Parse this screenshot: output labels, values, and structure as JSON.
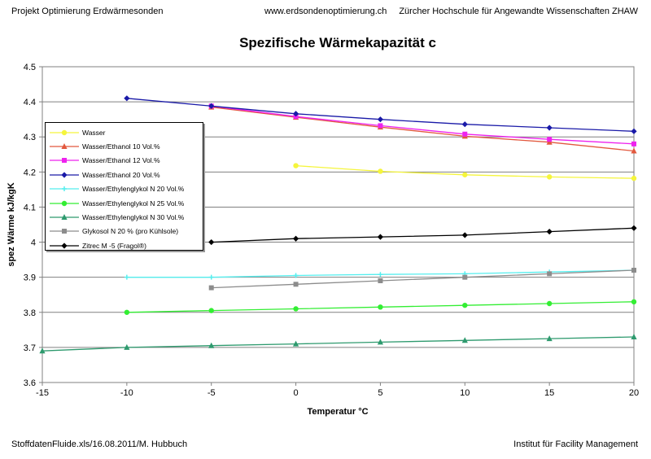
{
  "header": {
    "left": "Projekt Optimierung Erdwärmesonden",
    "center": "www.erdsondenoptimierung.ch",
    "right": "Zürcher Hochschule für Angewandte Wissenschaften ZHAW"
  },
  "footer": {
    "left": "StoffdatenFluide.xls/16.08.2011/M. Hubbuch",
    "right": "Institut für Facility Management"
  },
  "chart_data": {
    "type": "line",
    "title": "Spezifische Wärmekapazität c",
    "xlabel": "Temperatur °C",
    "ylabel": "spez Wärme kJ/kgK",
    "xlim": [
      -15,
      20
    ],
    "ylim": [
      3.6,
      4.5
    ],
    "x_ticks": [
      -15,
      -10,
      -5,
      0,
      5,
      10,
      15,
      20
    ],
    "y_ticks": [
      3.6,
      3.7,
      3.8,
      3.9,
      4,
      4.1,
      4.2,
      4.3,
      4.4,
      4.5
    ],
    "x_tick_labels": [
      "-15",
      "-10",
      "-5",
      "0",
      "5",
      "10",
      "15",
      "20"
    ],
    "y_tick_labels": [
      "3.6",
      "3.7",
      "3.8",
      "3.9",
      "4",
      "4.1",
      "4.2",
      "4.3",
      "4.4",
      "4.5"
    ],
    "grid": "horizontal",
    "legend_position": "left",
    "series": [
      {
        "name": "Wasser",
        "color": "#f5f53c",
        "marker": "circle",
        "x": [
          0,
          5,
          10,
          15,
          20
        ],
        "y": [
          4.218,
          4.202,
          4.192,
          4.186,
          4.182
        ]
      },
      {
        "name": "Wasser/Ethanol 10 Vol.%",
        "color": "#e2583e",
        "marker": "triangle",
        "x": [
          -5,
          0,
          5,
          10,
          15,
          20
        ],
        "y": [
          4.385,
          4.356,
          4.328,
          4.302,
          4.285,
          4.26
        ]
      },
      {
        "name": "Wasser/Ethanol 12 Vol.%",
        "color": "#ee22ee",
        "marker": "square",
        "x": [
          -5,
          0,
          5,
          10,
          15,
          20
        ],
        "y": [
          4.388,
          4.358,
          4.332,
          4.308,
          4.293,
          4.28
        ]
      },
      {
        "name": "Wasser/Ethanol 20 Vol.%",
        "color": "#1a1aa8",
        "marker": "diamond",
        "x": [
          -10,
          -5,
          0,
          5,
          10,
          15,
          20
        ],
        "y": [
          4.41,
          4.388,
          4.366,
          4.35,
          4.336,
          4.326,
          4.316
        ]
      },
      {
        "name": "Wasser/Ethylenglykol N 20 Vol.%",
        "color": "#55eeee",
        "marker": "cross",
        "x": [
          -10,
          -5,
          0,
          5,
          10,
          15,
          20
        ],
        "y": [
          3.9,
          3.9,
          3.905,
          3.908,
          3.91,
          3.915,
          3.92
        ]
      },
      {
        "name": "Wasser/Ethylenglykol N 25 Vol.%",
        "color": "#33ee33",
        "marker": "circle",
        "x": [
          -10,
          -5,
          0,
          5,
          10,
          15,
          20
        ],
        "y": [
          3.8,
          3.805,
          3.81,
          3.815,
          3.82,
          3.825,
          3.83
        ]
      },
      {
        "name": "Wasser/Ethylenglykol N 30 Vol.%",
        "color": "#2e9a6e",
        "marker": "triangle",
        "x": [
          -15,
          -10,
          -5,
          0,
          5,
          10,
          15,
          20
        ],
        "y": [
          3.69,
          3.7,
          3.705,
          3.71,
          3.715,
          3.72,
          3.725,
          3.73
        ]
      },
      {
        "name": "Glykosol N 20 % (pro Kühlsole)",
        "color": "#8c8c8c",
        "marker": "square",
        "x": [
          -5,
          0,
          5,
          10,
          15,
          20
        ],
        "y": [
          3.87,
          3.88,
          3.89,
          3.9,
          3.91,
          3.92
        ]
      },
      {
        "name": "Zitrec M -5 (Fragol®)",
        "color": "#000000",
        "marker": "diamond",
        "x": [
          -5,
          0,
          5,
          10,
          15,
          20
        ],
        "y": [
          4.0,
          4.01,
          4.015,
          4.02,
          4.03,
          4.04
        ]
      }
    ]
  }
}
